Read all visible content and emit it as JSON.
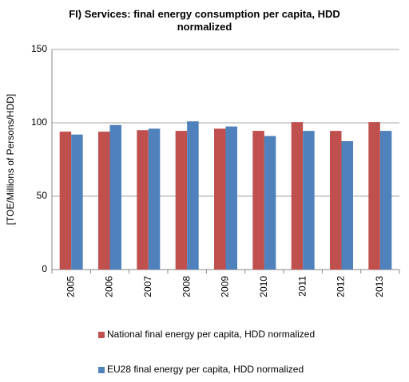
{
  "chart_data": {
    "type": "bar",
    "title": "FI) Services: final energy consumption per capita, HDD normalized",
    "y_label": "[TOE/Millions of Persons/HDD]",
    "categories": [
      "2005",
      "2006",
      "2007",
      "2008",
      "2009",
      "2010",
      "2011",
      "2012",
      "2013"
    ],
    "series": [
      {
        "name": "National final energy per capita, HDD normalized",
        "color": "#c0504d",
        "values": [
          94,
          94,
          95,
          94.5,
          96,
          94.5,
          100.5,
          94.5,
          100.5
        ]
      },
      {
        "name": "EU28 final energy per capita, HDD normalized",
        "color": "#4f81bd",
        "values": [
          92,
          98.5,
          96,
          101,
          97.5,
          91,
          94.5,
          87.5,
          94.5
        ]
      }
    ],
    "ylim": [
      0,
      150
    ],
    "yticks": [
      0,
      50,
      100,
      150
    ],
    "grid": true,
    "legend": "bottom"
  }
}
